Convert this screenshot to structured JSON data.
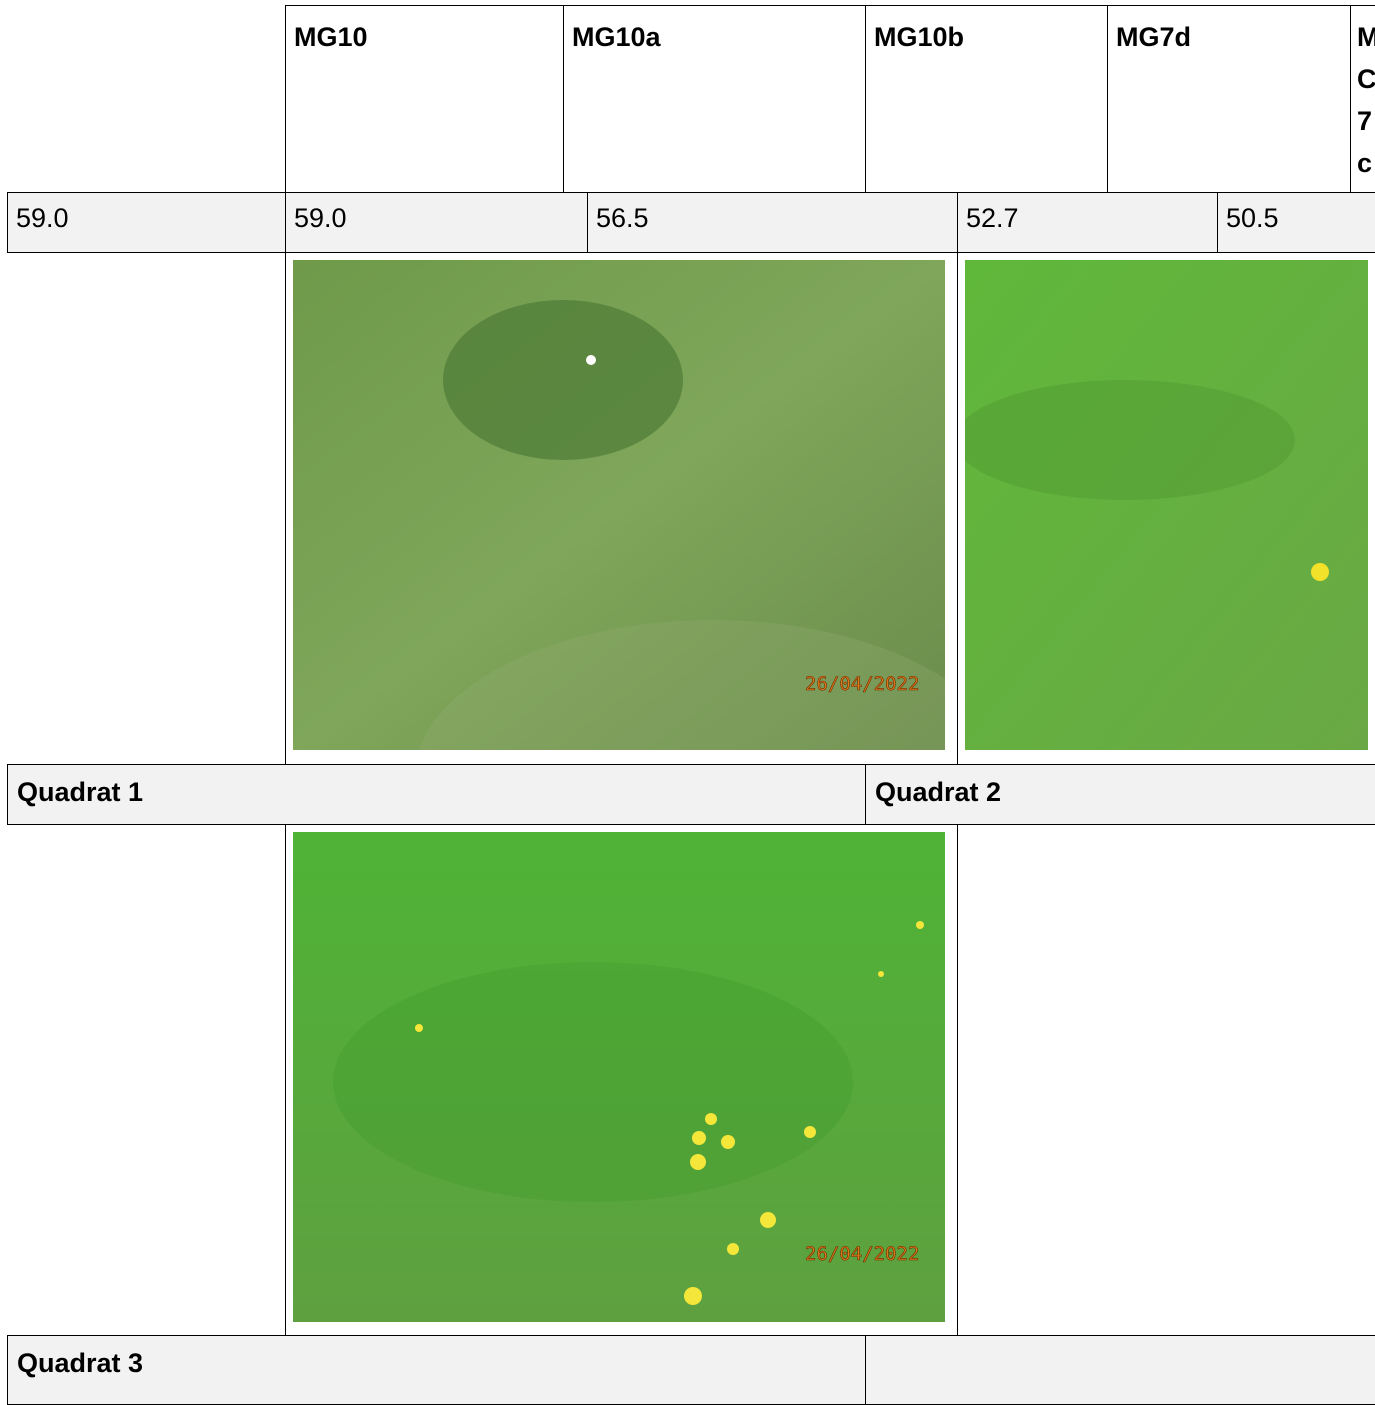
{
  "header": {
    "columns": [
      "MG10",
      "MG10a",
      "MG10b",
      "MG7d"
    ],
    "cut_column": [
      "M",
      "C",
      "7",
      "c"
    ]
  },
  "scores": [
    "59.0",
    "59.0",
    "56.5",
    "52.7",
    "50.5"
  ],
  "photos": [
    {
      "stamp": "26/04/2022"
    },
    {
      "stamp": ""
    },
    {
      "stamp": "26/04/2022"
    }
  ],
  "quadrats": [
    "Quadrat 1",
    "Quadrat 2",
    "Quadrat 3"
  ]
}
